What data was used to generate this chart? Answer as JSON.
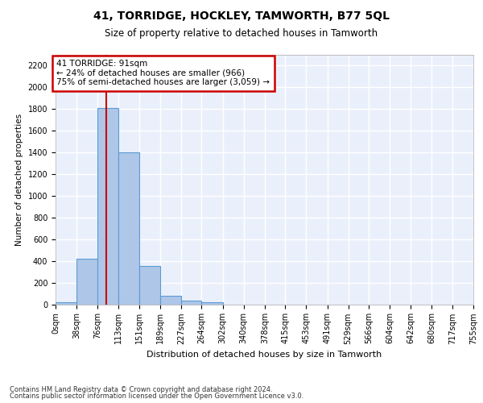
{
  "title": "41, TORRIDGE, HOCKLEY, TAMWORTH, B77 5QL",
  "subtitle": "Size of property relative to detached houses in Tamworth",
  "xlabel": "Distribution of detached houses by size in Tamworth",
  "ylabel": "Number of detached properties",
  "footnote1": "Contains HM Land Registry data © Crown copyright and database right 2024.",
  "footnote2": "Contains public sector information licensed under the Open Government Licence v3.0.",
  "annotation_line1": "41 TORRIDGE: 91sqm",
  "annotation_line2": "← 24% of detached houses are smaller (966)",
  "annotation_line3": "75% of semi-detached houses are larger (3,059) →",
  "property_size": 91,
  "bin_edges": [
    0,
    38,
    76,
    113,
    151,
    189,
    227,
    264,
    302,
    340,
    378,
    415,
    453,
    491,
    529,
    566,
    604,
    642,
    680,
    717,
    755
  ],
  "bar_values": [
    15,
    420,
    1810,
    1400,
    350,
    80,
    30,
    15,
    0,
    0,
    0,
    0,
    0,
    0,
    0,
    0,
    0,
    0,
    0,
    0
  ],
  "bar_color": "#aec6e8",
  "bar_edge_color": "#5b9bd5",
  "red_line_color": "#cc0000",
  "annotation_box_color": "#cc0000",
  "background_color": "#eaf0fb",
  "grid_color": "#ffffff",
  "ylim": [
    0,
    2300
  ],
  "yticks": [
    0,
    200,
    400,
    600,
    800,
    1000,
    1200,
    1400,
    1600,
    1800,
    2000,
    2200
  ],
  "title_fontsize": 10,
  "subtitle_fontsize": 8.5,
  "xlabel_fontsize": 8,
  "ylabel_fontsize": 7.5,
  "footnote_fontsize": 6,
  "tick_fontsize": 7,
  "annotation_fontsize": 7.5
}
